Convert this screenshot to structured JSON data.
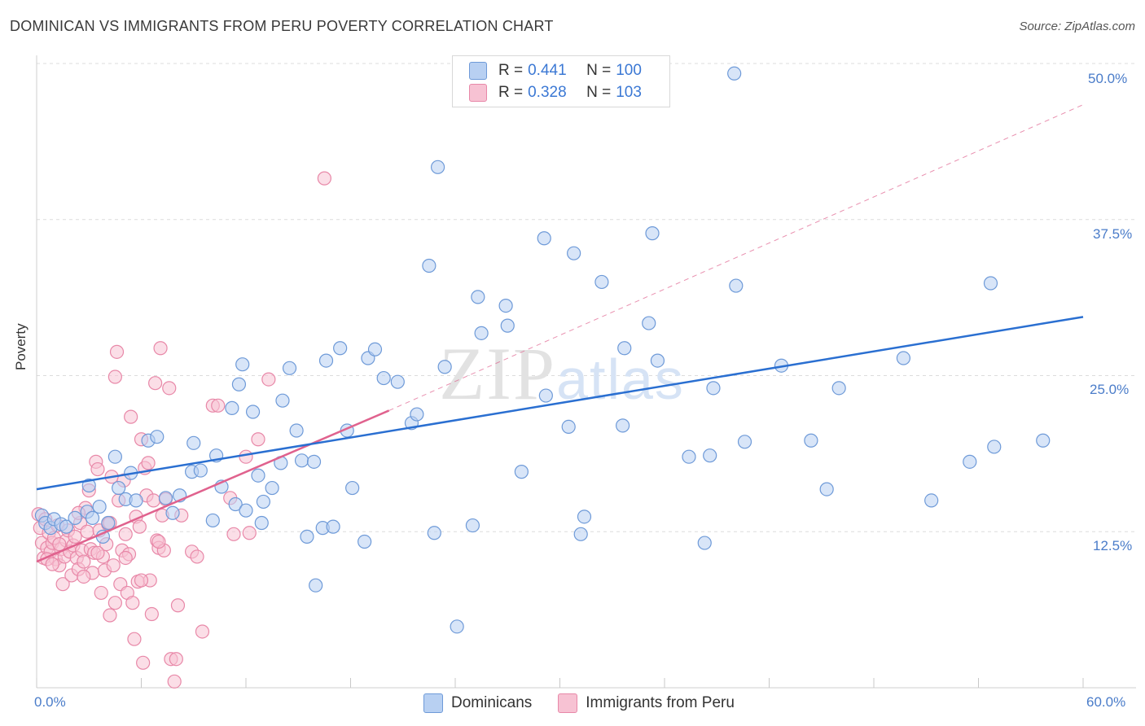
{
  "header": {
    "title": "DOMINICAN VS IMMIGRANTS FROM PERU POVERTY CORRELATION CHART",
    "source": "Source: ZipAtlas.com"
  },
  "legend": {
    "series1": {
      "r_label": "R =",
      "r_value": "0.441",
      "n_label": "N =",
      "n_value": "100"
    },
    "series2": {
      "r_label": "R =",
      "r_value": "0.328",
      "n_label": "N =",
      "n_value": "103"
    }
  },
  "bottom_legend": {
    "series1": "Dominicans",
    "series2": "Immigrants from Peru"
  },
  "colors": {
    "blue_fill": "#b8d0f2",
    "blue_stroke": "#6e9ad8",
    "blue_line": "#2a6fd1",
    "pink_fill": "#f7c2d3",
    "pink_stroke": "#e888a8",
    "pink_line": "#e0628e",
    "grid": "#dcdcdc",
    "tick_text": "#4a7cc9"
  },
  "chart_data": {
    "type": "scatter",
    "title": "DOMINICAN VS IMMIGRANTS FROM PERU POVERTY CORRELATION CHART",
    "xlabel": "",
    "ylabel": "Poverty",
    "xlim": [
      0,
      60
    ],
    "ylim": [
      0,
      50
    ],
    "x_tick_labels": [
      "0.0%",
      "60.0%"
    ],
    "y_ticks": [
      12.5,
      25.0,
      37.5,
      50.0
    ],
    "y_tick_labels": [
      "12.5%",
      "25.0%",
      "37.5%",
      "50.0%"
    ],
    "grid": true,
    "watermark": "ZIPatlas",
    "series": [
      {
        "name": "Dominicans",
        "color": "#b8d0f2",
        "r": 0.441,
        "n": 100,
        "trend": {
          "x": [
            0,
            60
          ],
          "y": [
            15.9,
            29.7
          ]
        },
        "points": [
          [
            0.3,
            13.8
          ],
          [
            0.5,
            13.2
          ],
          [
            0.8,
            12.8
          ],
          [
            1.0,
            13.5
          ],
          [
            1.4,
            13.1
          ],
          [
            1.7,
            12.9
          ],
          [
            2.2,
            13.6
          ],
          [
            2.9,
            14.1
          ],
          [
            3.0,
            16.2
          ],
          [
            3.6,
            14.5
          ],
          [
            3.8,
            12.1
          ],
          [
            4.1,
            13.2
          ],
          [
            4.5,
            18.5
          ],
          [
            4.7,
            16.0
          ],
          [
            5.1,
            15.1
          ],
          [
            5.4,
            17.2
          ],
          [
            5.7,
            15.0
          ],
          [
            6.4,
            19.8
          ],
          [
            6.9,
            20.1
          ],
          [
            7.4,
            15.2
          ],
          [
            7.8,
            14.0
          ],
          [
            8.2,
            15.4
          ],
          [
            8.9,
            17.3
          ],
          [
            9.0,
            19.6
          ],
          [
            9.4,
            17.4
          ],
          [
            10.1,
            13.4
          ],
          [
            10.3,
            18.6
          ],
          [
            10.6,
            16.1
          ],
          [
            11.2,
            22.4
          ],
          [
            11.4,
            14.7
          ],
          [
            11.6,
            24.3
          ],
          [
            11.8,
            25.9
          ],
          [
            12.4,
            22.1
          ],
          [
            12.7,
            17.0
          ],
          [
            12.9,
            13.2
          ],
          [
            13.0,
            14.9
          ],
          [
            13.5,
            16.0
          ],
          [
            14.0,
            18.0
          ],
          [
            14.1,
            23.0
          ],
          [
            14.5,
            25.6
          ],
          [
            14.9,
            20.6
          ],
          [
            15.2,
            18.2
          ],
          [
            15.5,
            12.1
          ],
          [
            15.9,
            18.1
          ],
          [
            16.4,
            12.8
          ],
          [
            16.6,
            26.2
          ],
          [
            17.0,
            12.9
          ],
          [
            17.4,
            27.2
          ],
          [
            17.8,
            20.6
          ],
          [
            18.1,
            16.0
          ],
          [
            18.8,
            11.7
          ],
          [
            19.0,
            26.4
          ],
          [
            19.4,
            27.1
          ],
          [
            19.9,
            24.8
          ],
          [
            20.7,
            24.5
          ],
          [
            21.5,
            21.2
          ],
          [
            21.8,
            21.9
          ],
          [
            22.5,
            33.8
          ],
          [
            22.8,
            12.4
          ],
          [
            23.0,
            41.7
          ],
          [
            23.4,
            25.7
          ],
          [
            24.1,
            4.9
          ],
          [
            25.3,
            31.3
          ],
          [
            25.5,
            28.4
          ],
          [
            26.9,
            30.6
          ],
          [
            27.0,
            29.0
          ],
          [
            27.8,
            17.3
          ],
          [
            29.1,
            36.0
          ],
          [
            29.2,
            23.4
          ],
          [
            30.5,
            20.9
          ],
          [
            30.8,
            34.8
          ],
          [
            31.2,
            12.3
          ],
          [
            31.4,
            13.7
          ],
          [
            32.4,
            32.5
          ],
          [
            33.6,
            21.0
          ],
          [
            33.7,
            27.2
          ],
          [
            35.1,
            29.2
          ],
          [
            35.3,
            36.4
          ],
          [
            35.6,
            26.2
          ],
          [
            37.4,
            18.5
          ],
          [
            38.6,
            18.6
          ],
          [
            38.8,
            24.0
          ],
          [
            40.0,
            49.2
          ],
          [
            40.1,
            32.2
          ],
          [
            40.6,
            19.7
          ],
          [
            42.7,
            25.8
          ],
          [
            44.4,
            19.8
          ],
          [
            45.3,
            15.9
          ],
          [
            46.0,
            24.0
          ],
          [
            49.7,
            26.4
          ],
          [
            51.3,
            15.0
          ],
          [
            53.5,
            18.1
          ],
          [
            54.7,
            32.4
          ],
          [
            54.9,
            19.3
          ],
          [
            57.7,
            19.8
          ],
          [
            38.3,
            11.6
          ],
          [
            16.0,
            8.2
          ],
          [
            25.0,
            13.0
          ],
          [
            3.2,
            13.6
          ],
          [
            12.0,
            14.2
          ]
        ]
      },
      {
        "name": "Immigrants from Peru",
        "color": "#f7c2d3",
        "r": 0.328,
        "n": 103,
        "trend": {
          "x": [
            0,
            20.2
          ],
          "y": [
            10.1,
            22.2
          ]
        },
        "trend_extended": {
          "x": [
            20.2,
            60
          ],
          "y": [
            22.2,
            46.7
          ]
        },
        "points": [
          [
            0.1,
            13.9
          ],
          [
            0.2,
            12.8
          ],
          [
            0.3,
            11.6
          ],
          [
            0.4,
            10.4
          ],
          [
            0.5,
            13.5
          ],
          [
            0.6,
            11.2
          ],
          [
            0.7,
            12.4
          ],
          [
            0.8,
            10.9
          ],
          [
            0.9,
            11.6
          ],
          [
            1.0,
            12.0
          ],
          [
            1.1,
            10.3
          ],
          [
            1.2,
            13.0
          ],
          [
            1.3,
            9.8
          ],
          [
            1.4,
            11.1
          ],
          [
            1.5,
            8.3
          ],
          [
            1.6,
            10.5
          ],
          [
            1.7,
            11.8
          ],
          [
            1.8,
            12.6
          ],
          [
            1.9,
            10.9
          ],
          [
            2.0,
            9.0
          ],
          [
            2.1,
            11.4
          ],
          [
            2.2,
            12.1
          ],
          [
            2.3,
            10.4
          ],
          [
            2.4,
            9.5
          ],
          [
            2.5,
            13.2
          ],
          [
            2.6,
            11.0
          ],
          [
            2.7,
            10.1
          ],
          [
            2.8,
            14.4
          ],
          [
            2.9,
            12.5
          ],
          [
            3.0,
            15.8
          ],
          [
            3.1,
            11.1
          ],
          [
            3.2,
            9.2
          ],
          [
            3.3,
            10.8
          ],
          [
            3.4,
            18.1
          ],
          [
            3.5,
            17.5
          ],
          [
            3.6,
            12.6
          ],
          [
            3.7,
            7.6
          ],
          [
            3.8,
            10.5
          ],
          [
            3.9,
            9.4
          ],
          [
            4.0,
            11.5
          ],
          [
            4.1,
            13.1
          ],
          [
            4.2,
            5.8
          ],
          [
            4.3,
            16.9
          ],
          [
            4.4,
            9.8
          ],
          [
            4.5,
            6.8
          ],
          [
            4.6,
            26.9
          ],
          [
            4.7,
            15.0
          ],
          [
            4.8,
            8.3
          ],
          [
            4.9,
            11.0
          ],
          [
            5.0,
            16.6
          ],
          [
            5.1,
            12.3
          ],
          [
            5.2,
            7.6
          ],
          [
            5.3,
            10.7
          ],
          [
            5.4,
            21.7
          ],
          [
            5.5,
            6.8
          ],
          [
            5.6,
            3.9
          ],
          [
            5.7,
            13.7
          ],
          [
            5.8,
            8.5
          ],
          [
            5.9,
            12.9
          ],
          [
            6.0,
            19.9
          ],
          [
            6.1,
            2.0
          ],
          [
            6.2,
            17.6
          ],
          [
            6.3,
            15.4
          ],
          [
            6.4,
            18.0
          ],
          [
            6.5,
            8.6
          ],
          [
            6.6,
            5.9
          ],
          [
            6.7,
            15.0
          ],
          [
            6.8,
            24.4
          ],
          [
            6.9,
            11.8
          ],
          [
            7.0,
            11.2
          ],
          [
            7.1,
            27.2
          ],
          [
            7.2,
            13.8
          ],
          [
            7.3,
            11.0
          ],
          [
            7.4,
            15.1
          ],
          [
            7.6,
            24.0
          ],
          [
            7.7,
            2.3
          ],
          [
            7.9,
            0.5
          ],
          [
            8.0,
            2.3
          ],
          [
            8.1,
            6.6
          ],
          [
            8.3,
            13.8
          ],
          [
            8.9,
            10.9
          ],
          [
            9.2,
            10.5
          ],
          [
            9.5,
            4.5
          ],
          [
            10.1,
            22.6
          ],
          [
            10.4,
            22.6
          ],
          [
            11.1,
            15.2
          ],
          [
            11.3,
            12.3
          ],
          [
            12.0,
            18.5
          ],
          [
            12.2,
            12.4
          ],
          [
            12.7,
            19.9
          ],
          [
            13.3,
            24.7
          ],
          [
            16.5,
            40.8
          ],
          [
            4.5,
            24.9
          ],
          [
            4.2,
            13.2
          ],
          [
            2.4,
            14.0
          ],
          [
            1.3,
            11.5
          ],
          [
            0.6,
            10.3
          ],
          [
            3.5,
            10.8
          ],
          [
            5.1,
            10.4
          ],
          [
            6.0,
            8.6
          ],
          [
            7.0,
            11.7
          ],
          [
            2.7,
            8.9
          ],
          [
            0.9,
            9.9
          ]
        ]
      }
    ]
  }
}
